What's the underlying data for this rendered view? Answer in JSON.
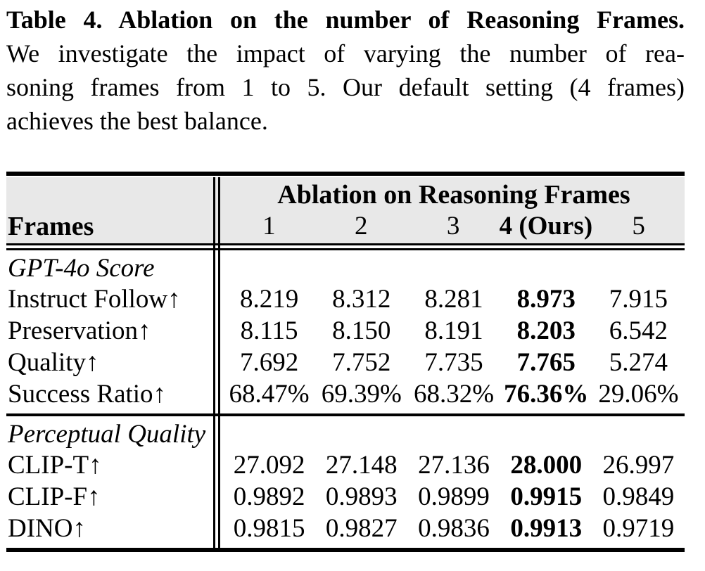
{
  "caption": {
    "title": "Table 4. Ablation on the number of Reasoning Frames.",
    "body_lines": [
      "We investigate the impact of varying the number of rea-",
      "soning frames from 1 to 5. Our default setting (4 frames)",
      "achieves the best balance."
    ]
  },
  "table": {
    "corner_label": "Frames",
    "group_header": "Ablation on Reasoning Frames",
    "columns": [
      "1",
      "2",
      "3",
      "4 (Ours)",
      "5"
    ],
    "bold_column_index": 3,
    "sections": [
      {
        "heading": "GPT-4o Score",
        "rows": [
          {
            "label": "Instruct Follow↑",
            "values": [
              "8.219",
              "8.312",
              "8.281",
              "8.973",
              "7.915"
            ]
          },
          {
            "label": "Preservation↑",
            "values": [
              "8.115",
              "8.150",
              "8.191",
              "8.203",
              "6.542"
            ]
          },
          {
            "label": "Quality↑",
            "values": [
              "7.692",
              "7.752",
              "7.735",
              "7.765",
              "5.274"
            ]
          },
          {
            "label": "Success Ratio↑",
            "values": [
              "68.47%",
              "69.39%",
              "68.32%",
              "76.36%",
              "29.06%"
            ]
          }
        ]
      },
      {
        "heading": "Perceptual Quality",
        "rows": [
          {
            "label": "CLIP-T↑",
            "values": [
              "27.092",
              "27.148",
              "27.136",
              "28.000",
              "26.997"
            ]
          },
          {
            "label": "CLIP-F↑",
            "values": [
              "0.9892",
              "0.9893",
              "0.9899",
              "0.9915",
              "0.9849"
            ]
          },
          {
            "label": "DINO↑",
            "values": [
              "0.9815",
              "0.9827",
              "0.9836",
              "0.9913",
              "0.9719"
            ]
          }
        ]
      }
    ]
  },
  "colors": {
    "background": "#ffffff",
    "header_bg": "#e8e8e8",
    "text": "#000000",
    "rule": "#000000"
  }
}
